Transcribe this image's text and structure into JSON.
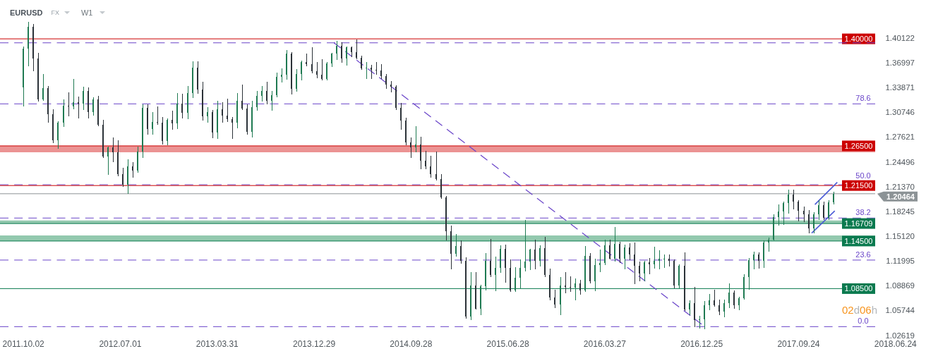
{
  "chart_data": {
    "type": "candlestick",
    "title": "EURUSD",
    "annotations": [
      "FX",
      "W1",
      "02d06h",
      {
        "text": "78.6",
        "x": "2018-03-25",
        "y": 1.318
      },
      {
        "text": "50.0",
        "x": "2018-03-25",
        "y": 1.216
      },
      {
        "text": "38.2",
        "x": "2018-03-25",
        "y": 1.174
      },
      {
        "text": "23.6",
        "x": "2018-03-25",
        "y": 1.121
      },
      {
        "text": "0.0",
        "x": "2018-03-25",
        "y": 1.037
      }
    ],
    "x": [
      "2011-10-02",
      "2011-10-16",
      "2011-10-30",
      "2011-11-13",
      "2011-11-27",
      "2011-12-11",
      "2011-12-25",
      "2012-01-08",
      "2012-01-22",
      "2012-02-05",
      "2012-02-19",
      "2012-03-04",
      "2012-03-18",
      "2012-04-01",
      "2012-04-15",
      "2012-04-29",
      "2012-05-13",
      "2012-05-27",
      "2012-06-10",
      "2012-06-24",
      "2012-07-08",
      "2012-07-22",
      "2012-08-05",
      "2012-08-19",
      "2012-09-02",
      "2012-09-16",
      "2012-09-30",
      "2012-10-14",
      "2012-10-28",
      "2012-11-11",
      "2012-11-25",
      "2012-12-09",
      "2012-12-23",
      "2013-01-06",
      "2013-01-20",
      "2013-02-03",
      "2013-02-17",
      "2013-03-03",
      "2013-03-17",
      "2013-03-31",
      "2013-04-14",
      "2013-04-28",
      "2013-05-12",
      "2013-05-26",
      "2013-06-09",
      "2013-06-23",
      "2013-07-07",
      "2013-07-21",
      "2013-08-04",
      "2013-08-18",
      "2013-09-01",
      "2013-09-15",
      "2013-09-29",
      "2013-10-13",
      "2013-10-27",
      "2013-11-10",
      "2013-11-24",
      "2013-12-08",
      "2013-12-22",
      "2014-01-05",
      "2014-01-19",
      "2014-02-02",
      "2014-02-16",
      "2014-03-02",
      "2014-03-16",
      "2014-03-30",
      "2014-04-13",
      "2014-04-27",
      "2014-05-11",
      "2014-05-25",
      "2014-06-08",
      "2014-06-22",
      "2014-07-06",
      "2014-07-20",
      "2014-08-03",
      "2014-08-17",
      "2014-08-31",
      "2014-09-14",
      "2014-09-28",
      "2014-10-12",
      "2014-10-26",
      "2014-11-09",
      "2014-11-23",
      "2014-12-07",
      "2014-12-21",
      "2015-01-04",
      "2015-01-18",
      "2015-02-01",
      "2015-02-15",
      "2015-03-01",
      "2015-03-15",
      "2015-03-29",
      "2015-04-12",
      "2015-04-26",
      "2015-05-10",
      "2015-05-24",
      "2015-06-07",
      "2015-06-21",
      "2015-07-05",
      "2015-07-19",
      "2015-08-02",
      "2015-08-16",
      "2015-08-30",
      "2015-09-13",
      "2015-09-27",
      "2015-10-11",
      "2015-10-25",
      "2015-11-08",
      "2015-11-22",
      "2015-12-06",
      "2015-12-20",
      "2016-01-03",
      "2016-01-17",
      "2016-01-31",
      "2016-02-14",
      "2016-02-28",
      "2016-03-13",
      "2016-03-27",
      "2016-04-10",
      "2016-04-24",
      "2016-05-08",
      "2016-05-22",
      "2016-06-05",
      "2016-06-19",
      "2016-07-03",
      "2016-07-17",
      "2016-07-31",
      "2016-08-14",
      "2016-08-28",
      "2016-09-11",
      "2016-09-25",
      "2016-10-09",
      "2016-10-23",
      "2016-11-06",
      "2016-11-20",
      "2016-12-04",
      "2016-12-18",
      "2017-01-01",
      "2017-01-15",
      "2017-01-29",
      "2017-02-12",
      "2017-02-26",
      "2017-03-12",
      "2017-03-26",
      "2017-04-09",
      "2017-04-23",
      "2017-05-07",
      "2017-05-21",
      "2017-06-04",
      "2017-06-18",
      "2017-07-02",
      "2017-07-16",
      "2017-07-30",
      "2017-08-13",
      "2017-08-27",
      "2017-09-10",
      "2017-09-24",
      "2017-10-08",
      "2017-10-22",
      "2017-11-05",
      "2017-11-19",
      "2017-12-03",
      "2017-12-17",
      "2017-12-31"
    ],
    "ohlc": [
      [
        1.339,
        1.39,
        1.315,
        1.388
      ],
      [
        1.388,
        1.421,
        1.366,
        1.415
      ],
      [
        1.415,
        1.418,
        1.36,
        1.375
      ],
      [
        1.375,
        1.382,
        1.321,
        1.324
      ],
      [
        1.324,
        1.355,
        1.322,
        1.338
      ],
      [
        1.338,
        1.34,
        1.295,
        1.305
      ],
      [
        1.305,
        1.311,
        1.269,
        1.272
      ],
      [
        1.272,
        1.296,
        1.262,
        1.294
      ],
      [
        1.294,
        1.323,
        1.289,
        1.316
      ],
      [
        1.316,
        1.332,
        1.303,
        1.315
      ],
      [
        1.315,
        1.349,
        1.312,
        1.32
      ],
      [
        1.32,
        1.327,
        1.3,
        1.318
      ],
      [
        1.318,
        1.339,
        1.311,
        1.334
      ],
      [
        1.334,
        1.338,
        1.3,
        1.308
      ],
      [
        1.308,
        1.326,
        1.304,
        1.324
      ],
      [
        1.324,
        1.328,
        1.29,
        1.292
      ],
      [
        1.292,
        1.297,
        1.25,
        1.252
      ],
      [
        1.252,
        1.264,
        1.229,
        1.263
      ],
      [
        1.263,
        1.275,
        1.245,
        1.257
      ],
      [
        1.257,
        1.272,
        1.227,
        1.229
      ],
      [
        1.229,
        1.237,
        1.214,
        1.216
      ],
      [
        1.216,
        1.248,
        1.205,
        1.239
      ],
      [
        1.239,
        1.244,
        1.225,
        1.234
      ],
      [
        1.234,
        1.264,
        1.232,
        1.258
      ],
      [
        1.258,
        1.317,
        1.25,
        1.313
      ],
      [
        1.313,
        1.317,
        1.28,
        1.286
      ],
      [
        1.286,
        1.307,
        1.28,
        1.295
      ],
      [
        1.295,
        1.314,
        1.292,
        1.294
      ],
      [
        1.294,
        1.301,
        1.267,
        1.271
      ],
      [
        1.271,
        1.299,
        1.266,
        1.298
      ],
      [
        1.298,
        1.309,
        1.286,
        1.293
      ],
      [
        1.293,
        1.331,
        1.287,
        1.318
      ],
      [
        1.318,
        1.33,
        1.3,
        1.307
      ],
      [
        1.307,
        1.34,
        1.299,
        1.332
      ],
      [
        1.332,
        1.371,
        1.326,
        1.364
      ],
      [
        1.364,
        1.371,
        1.331,
        1.336
      ],
      [
        1.336,
        1.345,
        1.297,
        1.302
      ],
      [
        1.302,
        1.313,
        1.295,
        1.308
      ],
      [
        1.308,
        1.31,
        1.275,
        1.282
      ],
      [
        1.282,
        1.321,
        1.274,
        1.311
      ],
      [
        1.311,
        1.32,
        1.295,
        1.303
      ],
      [
        1.303,
        1.324,
        1.296,
        1.299
      ],
      [
        1.299,
        1.301,
        1.274,
        1.294
      ],
      [
        1.294,
        1.331,
        1.288,
        1.322
      ],
      [
        1.322,
        1.342,
        1.311,
        1.312
      ],
      [
        1.312,
        1.317,
        1.28,
        1.283
      ],
      [
        1.283,
        1.321,
        1.276,
        1.314
      ],
      [
        1.314,
        1.334,
        1.31,
        1.328
      ],
      [
        1.328,
        1.34,
        1.321,
        1.334
      ],
      [
        1.334,
        1.345,
        1.318,
        1.322
      ],
      [
        1.322,
        1.334,
        1.31,
        1.329
      ],
      [
        1.329,
        1.357,
        1.327,
        1.352
      ],
      [
        1.352,
        1.362,
        1.345,
        1.355
      ],
      [
        1.355,
        1.385,
        1.349,
        1.381
      ],
      [
        1.381,
        1.383,
        1.33,
        1.337
      ],
      [
        1.337,
        1.361,
        1.334,
        1.356
      ],
      [
        1.356,
        1.372,
        1.348,
        1.371
      ],
      [
        1.371,
        1.381,
        1.366,
        1.368
      ],
      [
        1.368,
        1.389,
        1.357,
        1.359
      ],
      [
        1.359,
        1.37,
        1.351,
        1.355
      ],
      [
        1.355,
        1.374,
        1.348,
        1.349
      ],
      [
        1.349,
        1.37,
        1.348,
        1.369
      ],
      [
        1.369,
        1.382,
        1.365,
        1.381
      ],
      [
        1.381,
        1.397,
        1.374,
        1.391
      ],
      [
        1.391,
        1.395,
        1.37,
        1.375
      ],
      [
        1.375,
        1.39,
        1.367,
        1.389
      ],
      [
        1.389,
        1.39,
        1.377,
        1.383
      ],
      [
        1.383,
        1.399,
        1.375,
        1.376
      ],
      [
        1.376,
        1.378,
        1.361,
        1.363
      ],
      [
        1.363,
        1.37,
        1.35,
        1.364
      ],
      [
        1.364,
        1.367,
        1.35,
        1.361
      ],
      [
        1.361,
        1.37,
        1.355,
        1.36
      ],
      [
        1.36,
        1.368,
        1.35,
        1.353
      ],
      [
        1.353,
        1.355,
        1.337,
        1.342
      ],
      [
        1.342,
        1.346,
        1.333,
        1.34
      ],
      [
        1.34,
        1.341,
        1.311,
        1.313
      ],
      [
        1.313,
        1.319,
        1.286,
        1.297
      ],
      [
        1.297,
        1.3,
        1.266,
        1.269
      ],
      [
        1.269,
        1.275,
        1.25,
        1.263
      ],
      [
        1.263,
        1.289,
        1.257,
        1.267
      ],
      [
        1.267,
        1.276,
        1.236,
        1.246
      ],
      [
        1.246,
        1.258,
        1.236,
        1.239
      ],
      [
        1.239,
        1.252,
        1.225,
        1.229
      ],
      [
        1.229,
        1.257,
        1.222,
        1.223
      ],
      [
        1.223,
        1.229,
        1.199,
        1.2
      ],
      [
        1.2,
        1.201,
        1.146,
        1.157
      ],
      [
        1.157,
        1.164,
        1.11,
        1.129
      ],
      [
        1.129,
        1.153,
        1.126,
        1.139
      ],
      [
        1.139,
        1.145,
        1.117,
        1.12
      ],
      [
        1.12,
        1.124,
        1.048,
        1.05
      ],
      [
        1.05,
        1.105,
        1.046,
        1.089
      ],
      [
        1.089,
        1.105,
        1.059,
        1.06
      ],
      [
        1.06,
        1.089,
        1.052,
        1.088
      ],
      [
        1.088,
        1.129,
        1.083,
        1.12
      ],
      [
        1.12,
        1.147,
        1.1,
        1.102
      ],
      [
        1.102,
        1.125,
        1.082,
        1.111
      ],
      [
        1.111,
        1.139,
        1.105,
        1.135
      ],
      [
        1.135,
        1.14,
        1.093,
        1.111
      ],
      [
        1.111,
        1.121,
        1.081,
        1.083
      ],
      [
        1.083,
        1.112,
        1.081,
        1.099
      ],
      [
        1.099,
        1.121,
        1.086,
        1.111
      ],
      [
        1.111,
        1.171,
        1.107,
        1.119
      ],
      [
        1.119,
        1.135,
        1.109,
        1.134
      ],
      [
        1.134,
        1.146,
        1.11,
        1.12
      ],
      [
        1.12,
        1.139,
        1.113,
        1.136
      ],
      [
        1.136,
        1.15,
        1.1,
        1.102
      ],
      [
        1.102,
        1.11,
        1.071,
        1.074
      ],
      [
        1.074,
        1.083,
        1.061,
        1.065
      ],
      [
        1.065,
        1.099,
        1.052,
        1.089
      ],
      [
        1.089,
        1.105,
        1.08,
        1.087
      ],
      [
        1.087,
        1.1,
        1.081,
        1.086
      ],
      [
        1.086,
        1.097,
        1.071,
        1.092
      ],
      [
        1.092,
        1.096,
        1.078,
        1.083
      ],
      [
        1.083,
        1.138,
        1.081,
        1.126
      ],
      [
        1.126,
        1.129,
        1.092,
        1.094
      ],
      [
        1.094,
        1.122,
        1.082,
        1.115
      ],
      [
        1.115,
        1.134,
        1.106,
        1.117
      ],
      [
        1.117,
        1.146,
        1.115,
        1.14
      ],
      [
        1.14,
        1.146,
        1.122,
        1.123
      ],
      [
        1.123,
        1.162,
        1.12,
        1.141
      ],
      [
        1.141,
        1.144,
        1.118,
        1.123
      ],
      [
        1.123,
        1.14,
        1.11,
        1.137
      ],
      [
        1.137,
        1.142,
        1.121,
        1.128
      ],
      [
        1.128,
        1.143,
        1.091,
        1.114
      ],
      [
        1.114,
        1.119,
        1.095,
        1.104
      ],
      [
        1.104,
        1.12,
        1.095,
        1.118
      ],
      [
        1.118,
        1.123,
        1.104,
        1.116
      ],
      [
        1.116,
        1.137,
        1.111,
        1.12
      ],
      [
        1.12,
        1.133,
        1.11,
        1.123
      ],
      [
        1.123,
        1.128,
        1.112,
        1.123
      ],
      [
        1.123,
        1.128,
        1.113,
        1.12
      ],
      [
        1.12,
        1.121,
        1.086,
        1.089
      ],
      [
        1.089,
        1.115,
        1.086,
        1.114
      ],
      [
        1.114,
        1.13,
        1.057,
        1.059
      ],
      [
        1.059,
        1.07,
        1.052,
        1.067
      ],
      [
        1.067,
        1.087,
        1.037,
        1.045
      ],
      [
        1.045,
        1.05,
        1.035,
        1.046
      ],
      [
        1.046,
        1.069,
        1.034,
        1.064
      ],
      [
        1.064,
        1.078,
        1.058,
        1.07
      ],
      [
        1.07,
        1.083,
        1.063,
        1.064
      ],
      [
        1.064,
        1.071,
        1.052,
        1.056
      ],
      [
        1.056,
        1.071,
        1.049,
        1.067
      ],
      [
        1.067,
        1.091,
        1.061,
        1.08
      ],
      [
        1.08,
        1.082,
        1.06,
        1.064
      ],
      [
        1.064,
        1.074,
        1.058,
        1.073
      ],
      [
        1.073,
        1.103,
        1.072,
        1.1
      ],
      [
        1.1,
        1.123,
        1.084,
        1.121
      ],
      [
        1.121,
        1.131,
        1.11,
        1.128
      ],
      [
        1.128,
        1.13,
        1.111,
        1.12
      ],
      [
        1.12,
        1.145,
        1.112,
        1.143
      ],
      [
        1.143,
        1.149,
        1.132,
        1.147
      ],
      [
        1.147,
        1.178,
        1.146,
        1.175
      ],
      [
        1.175,
        1.191,
        1.165,
        1.182
      ],
      [
        1.182,
        1.194,
        1.166,
        1.193
      ],
      [
        1.193,
        1.209,
        1.18,
        1.204
      ],
      [
        1.204,
        1.209,
        1.185,
        1.195
      ],
      [
        1.195,
        1.196,
        1.17,
        1.183
      ],
      [
        1.183,
        1.188,
        1.169,
        1.179
      ],
      [
        1.179,
        1.184,
        1.155,
        1.161
      ],
      [
        1.161,
        1.181,
        1.155,
        1.179
      ],
      [
        1.179,
        1.196,
        1.172,
        1.19
      ],
      [
        1.19,
        1.194,
        1.172,
        1.174
      ],
      [
        1.174,
        1.196,
        1.172,
        1.194
      ],
      [
        1.194,
        1.207,
        1.192,
        1.20464
      ]
    ],
    "colors": [
      "#1f7a52",
      "#1f7a52",
      "#2b3238",
      "#2b3238",
      "#1f7a52",
      "#2b3238",
      "#2b3238",
      "#1f7a52",
      "#1f7a52",
      "#2b3238",
      "#1f7a52",
      "#2b3238",
      "#1f7a52",
      "#2b3238",
      "#1f7a52",
      "#2b3238",
      "#2b3238",
      "#1f7a52",
      "#2b3238",
      "#2b3238",
      "#2b3238",
      "#1f7a52",
      "#2b3238",
      "#1f7a52",
      "#1f7a52",
      "#2b3238",
      "#1f7a52",
      "#2b3238",
      "#2b3238",
      "#1f7a52",
      "#2b3238",
      "#1f7a52",
      "#2b3238",
      "#1f7a52",
      "#1f7a52",
      "#2b3238",
      "#2b3238",
      "#1f7a52",
      "#2b3238",
      "#1f7a52",
      "#2b3238",
      "#2b3238",
      "#2b3238",
      "#1f7a52",
      "#2b3238",
      "#2b3238",
      "#1f7a52",
      "#1f7a52",
      "#1f7a52",
      "#2b3238",
      "#1f7a52",
      "#1f7a52",
      "#1f7a52",
      "#1f7a52",
      "#2b3238",
      "#1f7a52",
      "#1f7a52",
      "#2b3238",
      "#2b3238",
      "#2b3238",
      "#2b3238",
      "#1f7a52",
      "#1f7a52",
      "#1f7a52",
      "#2b3238",
      "#1f7a52",
      "#2b3238",
      "#2b3238",
      "#2b3238",
      "#1f7a52",
      "#2b3238",
      "#2b3238",
      "#2b3238",
      "#2b3238",
      "#2b3238",
      "#2b3238",
      "#2b3238",
      "#2b3238",
      "#2b3238",
      "#1f7a52",
      "#2b3238",
      "#2b3238",
      "#2b3238",
      "#2b3238",
      "#2b3238",
      "#2b3238",
      "#2b3238",
      "#1f7a52",
      "#2b3238",
      "#2b3238",
      "#1f7a52",
      "#2b3238",
      "#1f7a52",
      "#1f7a52",
      "#2b3238",
      "#1f7a52",
      "#1f7a52",
      "#2b3238",
      "#2b3238",
      "#1f7a52",
      "#1f7a52",
      "#1f7a52",
      "#1f7a52",
      "#2b3238",
      "#1f7a52",
      "#2b3238",
      "#2b3238",
      "#2b3238",
      "#1f7a52",
      "#2b3238",
      "#2b3238",
      "#1f7a52",
      "#2b3238",
      "#1f7a52",
      "#2b3238",
      "#1f7a52",
      "#1f7a52",
      "#1f7a52",
      "#2b3238",
      "#1f7a52",
      "#2b3238",
      "#1f7a52",
      "#2b3238",
      "#2b3238",
      "#2b3238",
      "#1f7a52",
      "#2b3238",
      "#1f7a52",
      "#1f7a52",
      "#1f7a52",
      "#2b3238",
      "#2b3238",
      "#1f7a52",
      "#2b3238",
      "#1f7a52",
      "#2b3238",
      "#1f7a52",
      "#1f7a52",
      "#1f7a52",
      "#2b3238",
      "#2b3238",
      "#1f7a52",
      "#1f7a52",
      "#2b3238",
      "#1f7a52",
      "#1f7a52",
      "#1f7a52",
      "#1f7a52",
      "#2b3238",
      "#1f7a52",
      "#1f7a52",
      "#1f7a52",
      "#1f7a52",
      "#1f7a52",
      "#1f7a52",
      "#2b3238",
      "#2b3238",
      "#2b3238",
      "#2b3238",
      "#1f7a52",
      "#1f7a52",
      "#2b3238",
      "#1f7a52",
      "#1f7a52"
    ],
    "series": [
      {
        "type": "line",
        "x": [
          "2014-02-23",
          "2016-12-25"
        ],
        "values": [
          1.395,
          1.04
        ],
        "color": "#6a45c9",
        "line_style": "dashed"
      },
      {
        "type": "line",
        "x": [
          "2017-11-09",
          "2018-01-11"
        ],
        "values": [
          1.191,
          1.219
        ],
        "color": "#4b5bd6"
      },
      {
        "type": "line",
        "x": [
          "2017-10-31",
          "2018-01-04"
        ],
        "values": [
          1.155,
          1.183
        ],
        "color": "#4b5bd6"
      }
    ],
    "xlim": [
      "2011-07-28",
      "2018-09-18"
    ],
    "xticks": [
      {
        "value": "2011-10-02",
        "label": "2011.10.02"
      },
      {
        "value": "2012-07-01",
        "label": "2012.07.01"
      },
      {
        "value": "2013-03-31",
        "label": "2013.03.31"
      },
      {
        "value": "2013-12-29",
        "label": "2013.12.29"
      },
      {
        "value": "2014-09-28",
        "label": "2014.09.28"
      },
      {
        "value": "2015-06-28",
        "label": "2015.06.28"
      },
      {
        "value": "2016-03-27",
        "label": "2016.03.27"
      },
      {
        "value": "2016-12-25",
        "label": "2016.12.25"
      },
      {
        "value": "2017-09-24",
        "label": "2017.09.24"
      },
      {
        "value": "2018-06-24",
        "label": "2018.06.24"
      }
    ],
    "ylim": [
      1.0,
      1.449
    ],
    "yticks": [
      1.02619,
      1.05744,
      1.08869,
      1.11995,
      {
        "value": 1.1512,
        "label": "1.15120"
      },
      1.18245,
      {
        "value": 1.2137,
        "label": "1.21370"
      },
      1.24496,
      1.27621,
      1.30746,
      1.33871,
      1.36997,
      1.40122
    ],
    "ref_lines": [
      {
        "axis": "y",
        "value": 1.4,
        "label": "1.40000",
        "color": "#cc0000"
      },
      {
        "axis": "y",
        "value": 1.395,
        "color": "#6a45c9",
        "line_style": "dashed"
      },
      {
        "axis": "y",
        "value": 1.318,
        "color": "#6a45c9",
        "line_style": "dashed"
      },
      {
        "axis": "y",
        "value": 1.265,
        "label": "1.26500",
        "color": "#cc0000"
      },
      {
        "axis": "y",
        "value": 1.216,
        "color": "#6a45c9",
        "line_style": "dashed"
      },
      {
        "axis": "y",
        "value": 1.215,
        "label": "1.21500",
        "color": "#cc0000"
      },
      {
        "axis": "y",
        "value": 1.20464,
        "label": "1.20464",
        "color": "#8c9396"
      },
      {
        "axis": "y",
        "value": 1.174,
        "color": "#6a45c9",
        "line_style": "dashed"
      },
      {
        "axis": "y",
        "value": 1.16709,
        "label": "1.16709",
        "color": "#0a7a4f"
      },
      {
        "axis": "y",
        "value": 1.145,
        "label": "1.14500",
        "color": "#0a7a4f"
      },
      {
        "axis": "y",
        "value": 1.121,
        "color": "#6a45c9",
        "line_style": "dashed"
      },
      {
        "axis": "y",
        "value": 1.085,
        "label": "1.08500",
        "color": "#0a7a4f"
      },
      {
        "axis": "y",
        "value": 1.037,
        "color": "#6a45c9",
        "line_style": "dashed"
      }
    ],
    "bands": [
      {
        "axis": "y",
        "from": 1.257,
        "to": 1.265,
        "color": "#e88080"
      },
      {
        "axis": "y",
        "from": 1.167,
        "to": 1.171,
        "color": "#80c0a0"
      },
      {
        "axis": "y",
        "from": 1.145,
        "to": 1.152,
        "color": "#80c0a0"
      }
    ]
  }
}
